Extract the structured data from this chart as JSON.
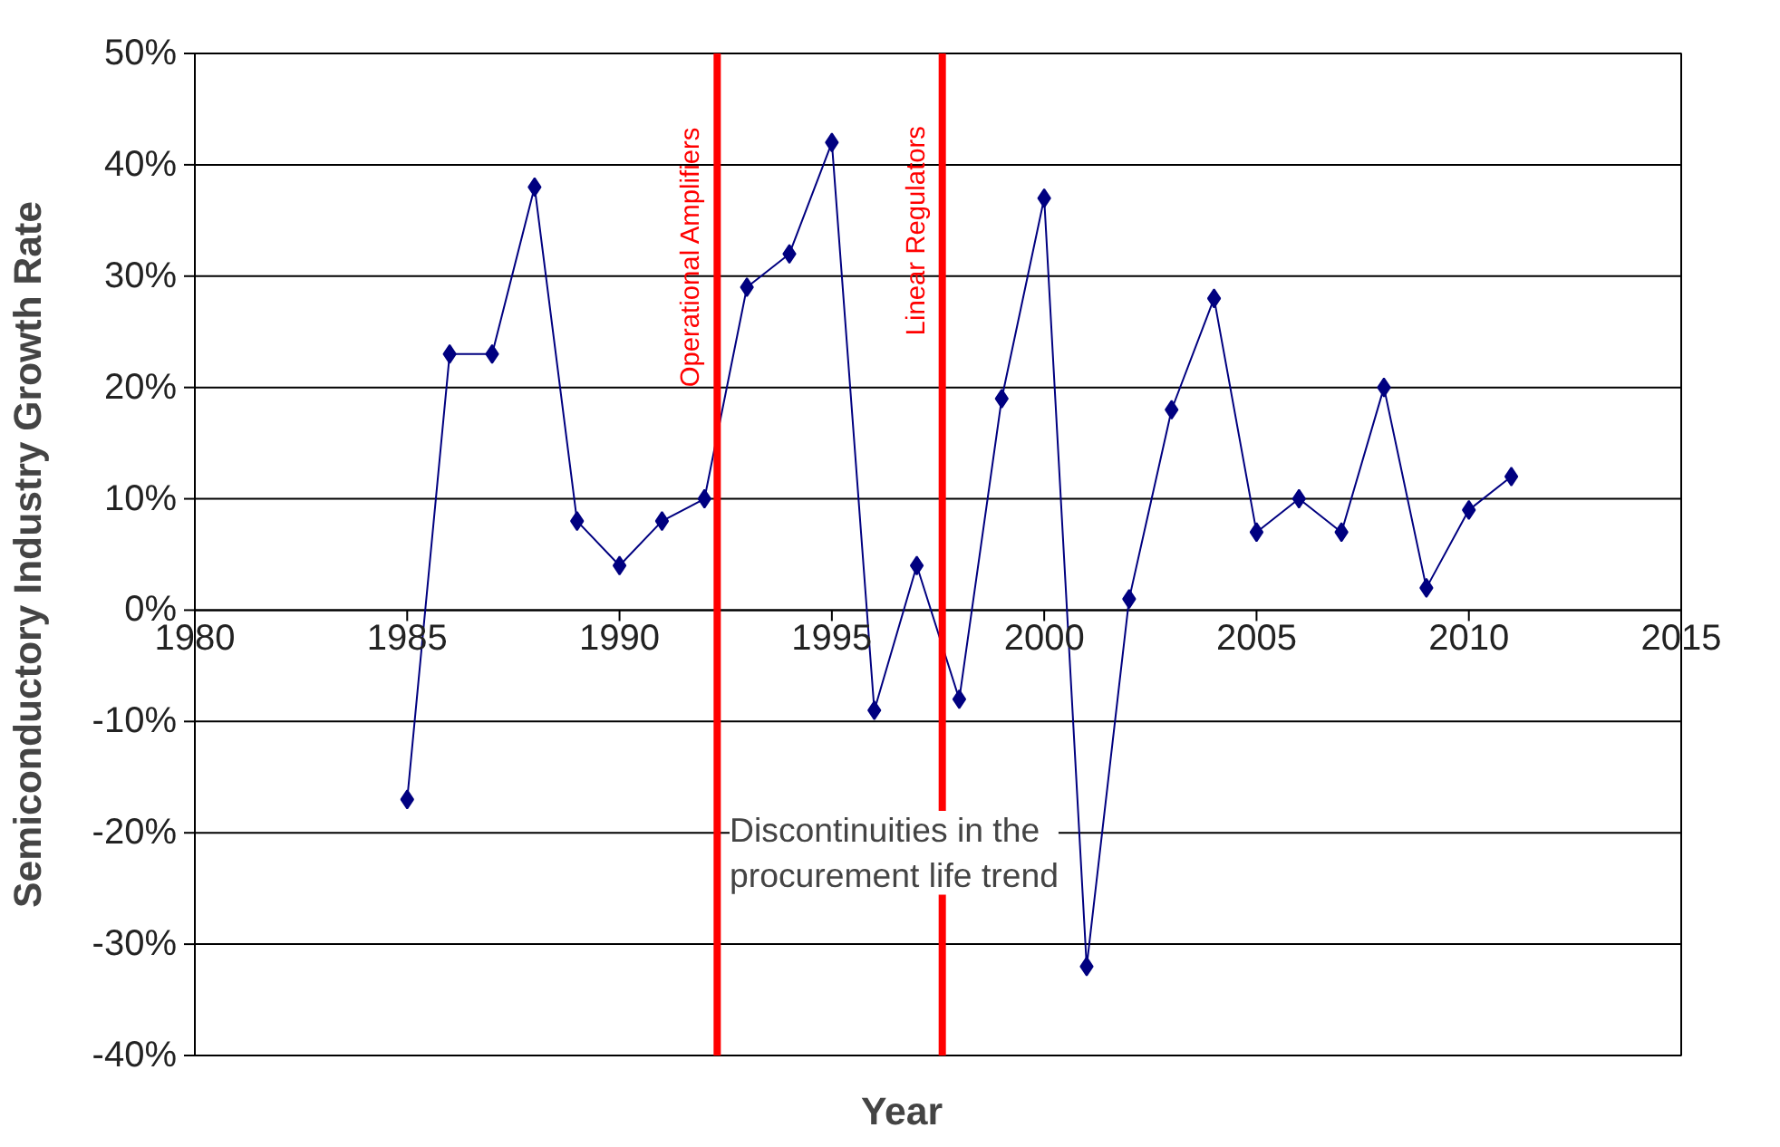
{
  "chart_data": {
    "type": "line",
    "xlabel": "Year",
    "ylabel": "Semiconductory Industry Growth Rate",
    "x": [
      1985,
      1986,
      1987,
      1988,
      1989,
      1990,
      1991,
      1992,
      1993,
      1994,
      1995,
      1996,
      1997,
      1998,
      1999,
      2000,
      2001,
      2002,
      2003,
      2004,
      2005,
      2006,
      2007,
      2008,
      2009,
      2010,
      2011
    ],
    "series": [
      {
        "color": "#000080",
        "values": [
          -17,
          23,
          23,
          38,
          8,
          4,
          8,
          10,
          29,
          32,
          42,
          -9,
          4,
          -8,
          19,
          37,
          -32,
          1,
          18,
          28,
          7,
          10,
          7,
          20,
          2,
          9,
          12
        ]
      }
    ],
    "xlim": [
      1980,
      2015
    ],
    "xticks": [
      1980,
      1985,
      1990,
      1995,
      2000,
      2005,
      2010,
      2015
    ],
    "ylim": [
      -40,
      50
    ],
    "yticks": [
      {
        "value": -40,
        "label": "-40%"
      },
      {
        "value": -30,
        "label": "-30%"
      },
      {
        "value": -20,
        "label": "-20%"
      },
      {
        "value": -10,
        "label": "-10%"
      },
      {
        "value": 0,
        "label": "0%"
      },
      {
        "value": 10,
        "label": "10%"
      },
      {
        "value": 20,
        "label": "20%"
      },
      {
        "value": 30,
        "label": "30%"
      },
      {
        "value": 40,
        "label": "40%"
      },
      {
        "value": 50,
        "label": "50%"
      }
    ],
    "grid": "y",
    "marker": "diamond",
    "line_style": "solid",
    "ref_lines": [
      {
        "axis": "x",
        "value": 1992.3,
        "label": "Operational Amplifiers",
        "color": "#ff0000"
      },
      {
        "axis": "x",
        "value": 1997.6,
        "label": "Linear Regulators",
        "color": "#ff0000"
      }
    ],
    "annotations": [
      "Discontinuities in the\nprocurement life trend"
    ]
  }
}
